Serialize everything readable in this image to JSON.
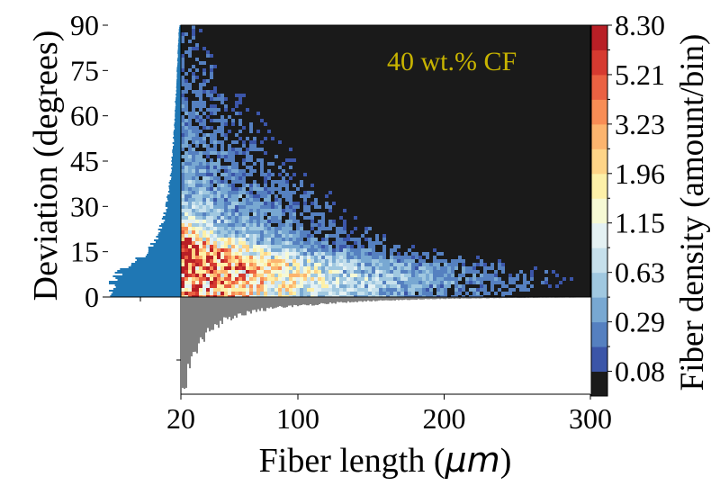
{
  "chart_data": {
    "type": "heatmap",
    "title": "",
    "annotation": "40 wt.% CF",
    "annotation_color": "#c8b400",
    "background_color": "#1a1a1a",
    "xlabel_main": "Fiber length (",
    "xlabel_unit": "μm",
    "xlabel_close": ")",
    "ylabel": "Deviation (degrees)",
    "colorbar_label": "Fiber density (amount/bin)",
    "xlim": [
      20,
      300
    ],
    "ylim": [
      0,
      90
    ],
    "x_ticks": [
      {
        "value": 20,
        "label": "20"
      },
      {
        "value": 100,
        "label": "100"
      },
      {
        "value": 200,
        "label": "200"
      },
      {
        "value": 300,
        "label": "300"
      }
    ],
    "y_ticks": [
      {
        "value": 0,
        "label": "0"
      },
      {
        "value": 15,
        "label": "15"
      },
      {
        "value": 30,
        "label": "30"
      },
      {
        "value": 45,
        "label": "45"
      },
      {
        "value": 60,
        "label": "60"
      },
      {
        "value": 75,
        "label": "75"
      },
      {
        "value": 90,
        "label": "90"
      }
    ],
    "colorbar_tick_labels": [
      "0.08",
      "0.29",
      "0.63",
      "1.15",
      "1.96",
      "3.23",
      "5.21",
      "8.30"
    ],
    "colorbar_colors": [
      "#1a1a1a",
      "#3b55a8",
      "#5580c0",
      "#78a8d2",
      "#a0c8e0",
      "#c6e0ec",
      "#e4f1f3",
      "#f6f9d4",
      "#fdf0a8",
      "#fed487",
      "#fcb46e",
      "#f88d55",
      "#ea6142",
      "#d63a30",
      "#b81f26"
    ],
    "marginal_y_color": "#1f77b4",
    "marginal_x_color": "#808080",
    "marginal_y_profile": {
      "deviation": [
        0,
        3,
        6,
        9,
        12,
        15,
        20,
        25,
        30,
        35,
        40,
        45,
        50,
        55,
        60,
        65,
        70,
        75,
        80,
        85,
        88,
        90
      ],
      "relative_count": [
        0.9,
        1.0,
        0.97,
        0.82,
        0.62,
        0.46,
        0.33,
        0.25,
        0.2,
        0.17,
        0.145,
        0.125,
        0.11,
        0.095,
        0.085,
        0.075,
        0.065,
        0.055,
        0.045,
        0.035,
        0.03,
        0.02
      ]
    },
    "marginal_x_profile": {
      "length": [
        22,
        25,
        30,
        35,
        40,
        45,
        50,
        60,
        70,
        80,
        90,
        100,
        120,
        140,
        160,
        180,
        200,
        220,
        240,
        260,
        280,
        300
      ],
      "relative_count": [
        1.0,
        0.8,
        0.58,
        0.45,
        0.36,
        0.3,
        0.25,
        0.19,
        0.155,
        0.13,
        0.11,
        0.095,
        0.07,
        0.05,
        0.037,
        0.027,
        0.02,
        0.015,
        0.011,
        0.008,
        0.006,
        0.004
      ]
    }
  }
}
